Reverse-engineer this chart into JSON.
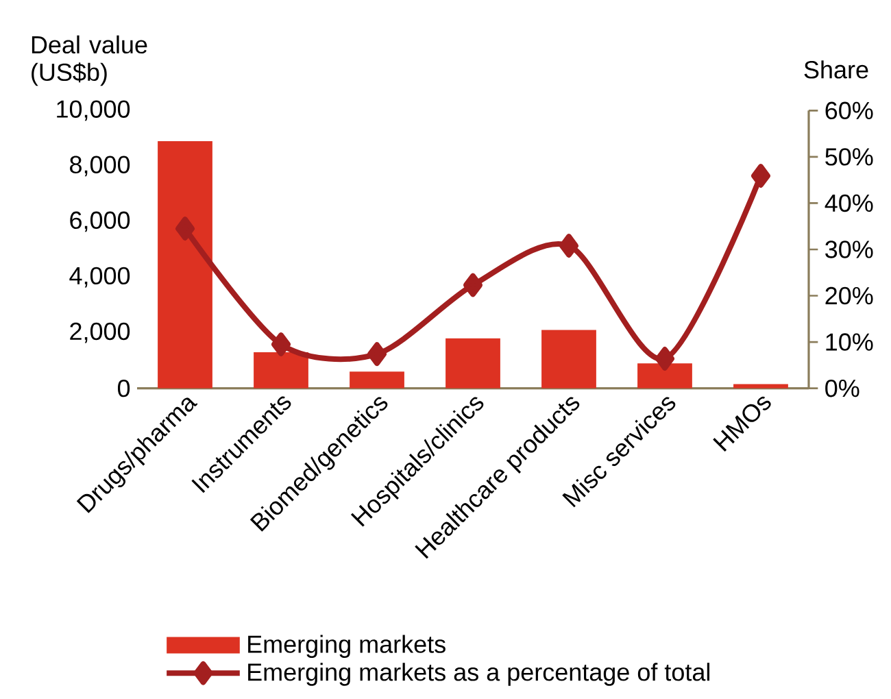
{
  "chart_data": {
    "type": "bar",
    "ylabel": "Deal value (US$b)",
    "y2label": "Share",
    "categories": [
      "Drugs/pharma",
      "Instruments",
      "Biomed/genetics",
      "Hospitals/clinics",
      "Healthcare products",
      "Misc services",
      "HMOs"
    ],
    "series": [
      {
        "name": "Emerging markets",
        "color": "#dd3222",
        "values": [
          8900,
          1300,
          600,
          1800,
          2100,
          900,
          150
        ]
      },
      {
        "name": "Emerging markets as a percentage of total",
        "color": "#a31f1f",
        "type": "line",
        "axis": "y2",
        "values": [
          34.5,
          9.5,
          7.4,
          22.3,
          30.8,
          6.4,
          45.9
        ]
      }
    ],
    "ylim": [
      0,
      10000
    ],
    "yticks": [
      0,
      {
        "value": 2000,
        "label": "2,000"
      },
      {
        "value": 4000,
        "label": "4,000"
      },
      {
        "value": 6000,
        "label": "6,000"
      },
      {
        "value": 8000,
        "label": "8,000"
      },
      {
        "value": 10000,
        "label": "10,000"
      }
    ],
    "y2lim": [
      0,
      60
    ],
    "y2ticks": [
      {
        "value": 0,
        "label": "0%"
      },
      {
        "value": 10,
        "label": "10%"
      },
      {
        "value": 20,
        "label": "20%"
      },
      {
        "value": 30,
        "label": "30%"
      },
      {
        "value": 40,
        "label": "40%"
      },
      {
        "value": 50,
        "label": "50%"
      },
      {
        "value": 60,
        "label": "60%"
      }
    ],
    "marker": "diamond",
    "line_style": "solid",
    "legend": "bottom"
  }
}
